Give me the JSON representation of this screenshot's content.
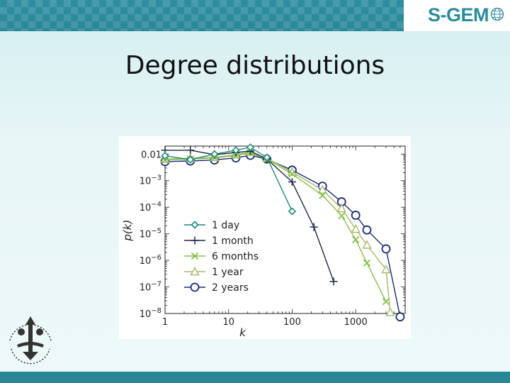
{
  "slide": {
    "title": "Degree distributions",
    "logo_text": "S-GEM",
    "accent_color": "#2a8798"
  },
  "chart_data": {
    "type": "line",
    "xscale": "log",
    "yscale": "log",
    "xlim": [
      1,
      6000
    ],
    "ylim": [
      1e-08,
      0.02
    ],
    "xlabel": "k",
    "ylabel": "p(k)",
    "xticks": [
      {
        "value": 1,
        "label": "1"
      },
      {
        "value": 10,
        "label": "10"
      },
      {
        "value": 100,
        "label": "100"
      },
      {
        "value": 1000,
        "label": "1000"
      }
    ],
    "yticks": [
      {
        "value": 0.01,
        "base": "0.01",
        "exp": ""
      },
      {
        "value": 0.001,
        "base": "10",
        "exp": "−3"
      },
      {
        "value": 0.0001,
        "base": "10",
        "exp": "−4"
      },
      {
        "value": 1e-05,
        "base": "10",
        "exp": "−5"
      },
      {
        "value": 1e-06,
        "base": "10",
        "exp": "−6"
      },
      {
        "value": 1e-07,
        "base": "10",
        "exp": "−7"
      },
      {
        "value": 1e-08,
        "base": "10",
        "exp": "−8"
      }
    ],
    "legend_position": "lower-left",
    "series": [
      {
        "name": "1 day",
        "marker": "diamond",
        "color": "#1d8a7c",
        "x": [
          1,
          2.5,
          6,
          13,
          22,
          40,
          100
        ],
        "y": [
          0.0086,
          0.0062,
          0.01,
          0.014,
          0.018,
          0.0075,
          7e-05
        ]
      },
      {
        "name": "1 month",
        "marker": "plus",
        "color": "#1f2a44",
        "x": [
          1,
          2.5,
          6,
          13,
          22,
          40,
          100,
          220,
          450
        ],
        "y": [
          0.014,
          0.014,
          0.0095,
          0.0115,
          0.013,
          0.0065,
          0.0009,
          1.8e-05,
          1.6e-07
        ]
      },
      {
        "name": "6 months",
        "marker": "x",
        "color": "#86c04a",
        "x": [
          1,
          2.5,
          6,
          13,
          22,
          40,
          100,
          300,
          600,
          1000,
          1500,
          3000
        ],
        "y": [
          0.006,
          0.0065,
          0.0072,
          0.0088,
          0.011,
          0.0065,
          0.0018,
          0.00028,
          4.8e-05,
          6e-06,
          8e-07,
          2.8e-08
        ]
      },
      {
        "name": "1 year",
        "marker": "triangle",
        "color": "#a6b86a",
        "x": [
          1,
          2.5,
          6,
          13,
          22,
          40,
          100,
          300,
          600,
          1000,
          1500,
          3000,
          3500
        ],
        "y": [
          0.0065,
          0.007,
          0.0075,
          0.0095,
          0.012,
          0.007,
          0.0021,
          0.00045,
          9e-05,
          1.5e-05,
          3.8e-06,
          4.5e-07,
          1.1e-08
        ]
      },
      {
        "name": "2 years",
        "marker": "circle",
        "color": "#1a2a80",
        "x": [
          1,
          2.5,
          6,
          13,
          22,
          40,
          100,
          300,
          600,
          1000,
          1500,
          3000,
          5000
        ],
        "y": [
          0.0052,
          0.0055,
          0.006,
          0.0072,
          0.009,
          0.0065,
          0.0025,
          0.00062,
          0.00016,
          5e-05,
          1.4e-05,
          2.7e-06,
          7.5e-09
        ]
      }
    ]
  }
}
